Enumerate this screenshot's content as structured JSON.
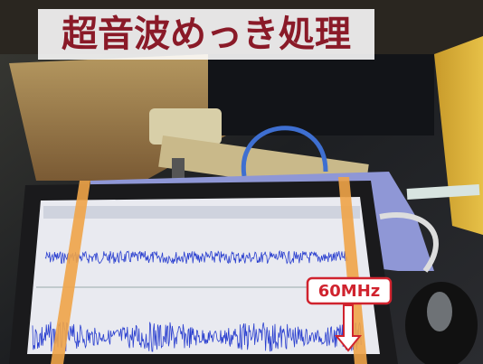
{
  "title": "超音波めっき処理",
  "annotation": "60MHz"
}
